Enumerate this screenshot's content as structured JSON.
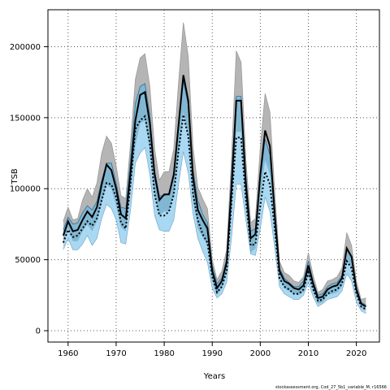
{
  "chart_data": {
    "type": "area",
    "xlabel": "Years",
    "ylabel": "TSB",
    "caption": "stockassessment.org, Cod_27_5b1_variable_M, r16566",
    "xlim": [
      1955.8,
      2024.8
    ],
    "ylim": [
      -8000,
      226000
    ],
    "x_ticks": [
      1960,
      1970,
      1980,
      1990,
      2000,
      2010,
      2020
    ],
    "y_ticks": [
      0,
      50000,
      100000,
      150000,
      200000
    ],
    "grid": true,
    "colors": {
      "grey_band": "#b5b5b5",
      "grey_line": "#000000",
      "blue_band": "#a9d8f2",
      "blue_line": "#2a6f9e",
      "overlap": "#7ab1cc",
      "dotted_line": "#000000"
    },
    "years": [
      1959,
      1960,
      1961,
      1962,
      1963,
      1964,
      1965,
      1966,
      1967,
      1968,
      1969,
      1970,
      1971,
      1972,
      1973,
      1974,
      1975,
      1976,
      1977,
      1978,
      1979,
      1980,
      1981,
      1982,
      1983,
      1984,
      1985,
      1986,
      1987,
      1988,
      1989,
      1990,
      1991,
      1992,
      1993,
      1994,
      1995,
      1996,
      1997,
      1998,
      1999,
      2000,
      2001,
      2002,
      2003,
      2004,
      2005,
      2006,
      2007,
      2008,
      2009,
      2010,
      2011,
      2012,
      2013,
      2014,
      2015,
      2016,
      2017,
      2018,
      2019,
      2020,
      2021,
      2022
    ],
    "series": [
      {
        "band": "grey",
        "estimate": [
          67000,
          77000,
          70000,
          71000,
          78000,
          84000,
          80000,
          87000,
          103000,
          117000,
          113000,
          100000,
          82000,
          79000,
          112000,
          148000,
          166000,
          168000,
          146000,
          110000,
          92000,
          96000,
          96000,
          110000,
          145000,
          180000,
          162000,
          108000,
          85000,
          78000,
          72000,
          42000,
          30000,
          35000,
          48000,
          100000,
          162000,
          162000,
          103000,
          65000,
          68000,
          110000,
          141000,
          130000,
          82000,
          42000,
          35000,
          33000,
          30000,
          29000,
          32000,
          46000,
          33000,
          23000,
          24000,
          29000,
          31000,
          32000,
          37000,
          58000,
          52000,
          29000,
          19000,
          17000
        ],
        "lower": [
          62000,
          72000,
          63000,
          63000,
          70000,
          75000,
          70000,
          77000,
          90000,
          103000,
          100000,
          88000,
          73000,
          70000,
          98000,
          130000,
          146000,
          148000,
          127000,
          96000,
          81000,
          84000,
          84000,
          96000,
          125000,
          154000,
          138000,
          92000,
          72000,
          66000,
          60000,
          35000,
          25000,
          30000,
          41000,
          85000,
          140000,
          140000,
          88000,
          55000,
          58000,
          94000,
          120000,
          110000,
          70000,
          36000,
          30000,
          28000,
          26000,
          25000,
          27000,
          39000,
          28000,
          19000,
          20000,
          25000,
          26000,
          27000,
          31000,
          50000,
          44000,
          25000,
          16000,
          14000
        ],
        "upper": [
          77000,
          87000,
          78000,
          79000,
          92000,
          100000,
          94000,
          104000,
          125000,
          137000,
          132000,
          116000,
          95000,
          93000,
          132000,
          177000,
          192000,
          195000,
          172000,
          128000,
          106000,
          112000,
          112000,
          128000,
          175000,
          217000,
          193000,
          129000,
          101000,
          93000,
          86000,
          50000,
          36000,
          42000,
          57000,
          121000,
          197000,
          189000,
          121000,
          76000,
          79000,
          129000,
          167000,
          154000,
          98000,
          49000,
          41000,
          39000,
          35000,
          34000,
          38000,
          55000,
          39000,
          27000,
          29000,
          35000,
          36000,
          38000,
          44000,
          69000,
          60000,
          35000,
          22000,
          23000
        ]
      },
      {
        "band": "blue",
        "estimate": [
          62000,
          71000,
          66000,
          67000,
          72000,
          77000,
          74000,
          79000,
          92000,
          104000,
          103000,
          94000,
          76000,
          72000,
          104000,
          142000,
          148000,
          151000,
          132000,
          96000,
          81000,
          81000,
          84000,
          96000,
          127000,
          152000,
          137000,
          96000,
          78000,
          68000,
          62000,
          38000,
          27000,
          31000,
          42000,
          90000,
          136000,
          136000,
          92000,
          60000,
          61000,
          88000,
          112000,
          103000,
          72000,
          37000,
          31000,
          29000,
          26000,
          26000,
          29000,
          41000,
          29000,
          21000,
          22000,
          26000,
          28000,
          29000,
          33000,
          49000,
          44000,
          26000,
          17000,
          15000
        ],
        "lower": [
          57000,
          65000,
          57000,
          57000,
          61000,
          67000,
          60000,
          65000,
          79000,
          89000,
          86000,
          78000,
          62000,
          61000,
          85000,
          118000,
          125000,
          129000,
          110000,
          81000,
          71000,
          70000,
          70000,
          78000,
          103000,
          126000,
          111000,
          82000,
          65000,
          56000,
          48000,
          30000,
          23000,
          26000,
          34000,
          65000,
          103000,
          103000,
          78000,
          54000,
          53000,
          72000,
          94000,
          84000,
          58000,
          31000,
          26000,
          24000,
          22000,
          22000,
          25000,
          34000,
          24000,
          17000,
          19000,
          22000,
          23000,
          24000,
          28000,
          40000,
          35000,
          20000,
          14000,
          12000
        ],
        "upper": [
          71000,
          80000,
          75000,
          76000,
          83000,
          88000,
          85000,
          91000,
          106000,
          118000,
          118000,
          104000,
          87000,
          86000,
          121000,
          160000,
          172000,
          174000,
          152000,
          113000,
          95000,
          95000,
          97000,
          112000,
          148000,
          176000,
          159000,
          113000,
          92000,
          82000,
          76000,
          46000,
          33000,
          37000,
          51000,
          110000,
          165000,
          165000,
          110000,
          70000,
          72000,
          107000,
          135000,
          124000,
          86000,
          44000,
          37000,
          34000,
          31000,
          31000,
          35000,
          49000,
          35000,
          25000,
          26000,
          31000,
          33000,
          34000,
          39000,
          57000,
          52000,
          31000,
          20000,
          18000
        ]
      }
    ]
  }
}
